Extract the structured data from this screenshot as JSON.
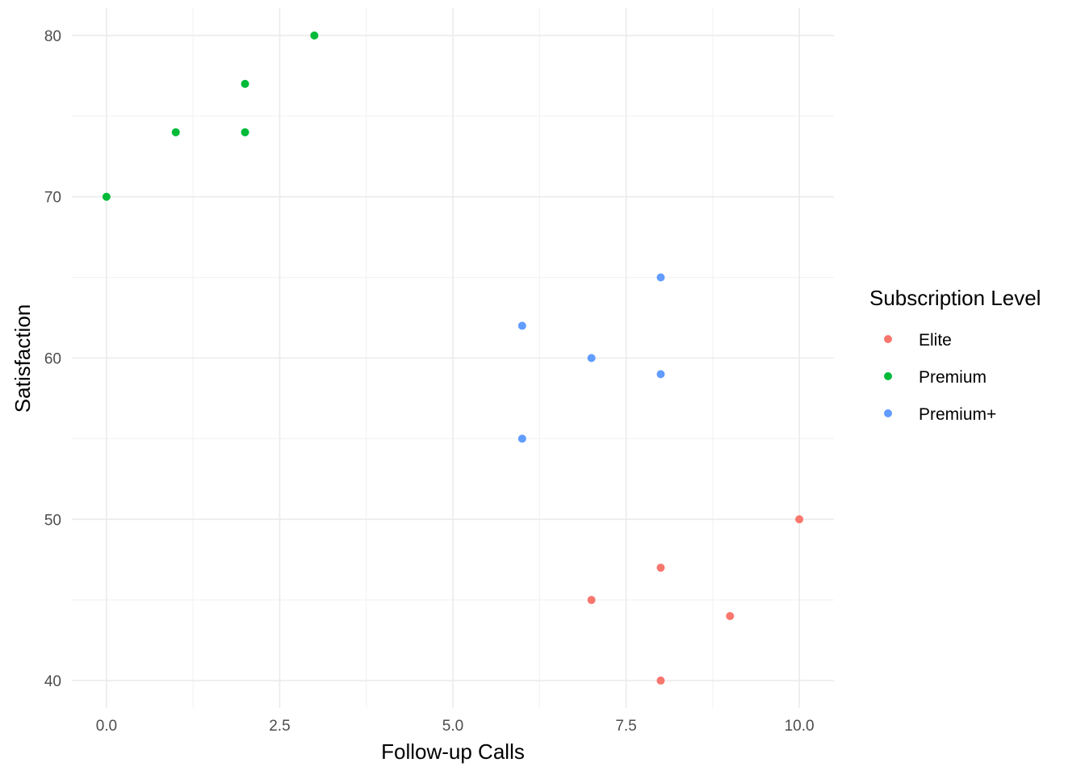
{
  "chart_data": {
    "type": "scatter",
    "title": "",
    "xlabel": "Follow-up Calls",
    "ylabel": "Satisfaction",
    "xlim": [
      -0.5,
      10.5
    ],
    "ylim": [
      38.3,
      81.7
    ],
    "x_ticks": [
      0.0,
      2.5,
      5.0,
      7.5,
      10.0
    ],
    "x_tick_labels": [
      "0.0",
      "2.5",
      "5.0",
      "7.5",
      "10.0"
    ],
    "y_ticks": [
      40,
      50,
      60,
      70,
      80
    ],
    "y_tick_labels": [
      "40",
      "50",
      "60",
      "70",
      "80"
    ],
    "grid": true,
    "legend": {
      "title": "Subscription Level",
      "position": "right",
      "entries": [
        "Elite",
        "Premium",
        "Premium+"
      ]
    },
    "series": [
      {
        "name": "Elite",
        "color": "#F8766D",
        "points": [
          {
            "x": 10,
            "y": 50
          },
          {
            "x": 8,
            "y": 47
          },
          {
            "x": 7,
            "y": 45
          },
          {
            "x": 9,
            "y": 44
          },
          {
            "x": 8,
            "y": 40
          }
        ]
      },
      {
        "name": "Premium",
        "color": "#00BA38",
        "points": [
          {
            "x": 3,
            "y": 80
          },
          {
            "x": 2,
            "y": 77
          },
          {
            "x": 1,
            "y": 74
          },
          {
            "x": 2,
            "y": 74
          },
          {
            "x": 0,
            "y": 70
          }
        ]
      },
      {
        "name": "Premium+",
        "color": "#619CFF",
        "points": [
          {
            "x": 8,
            "y": 65
          },
          {
            "x": 6,
            "y": 62
          },
          {
            "x": 7,
            "y": 60
          },
          {
            "x": 8,
            "y": 59
          },
          {
            "x": 6,
            "y": 55
          }
        ]
      }
    ]
  }
}
